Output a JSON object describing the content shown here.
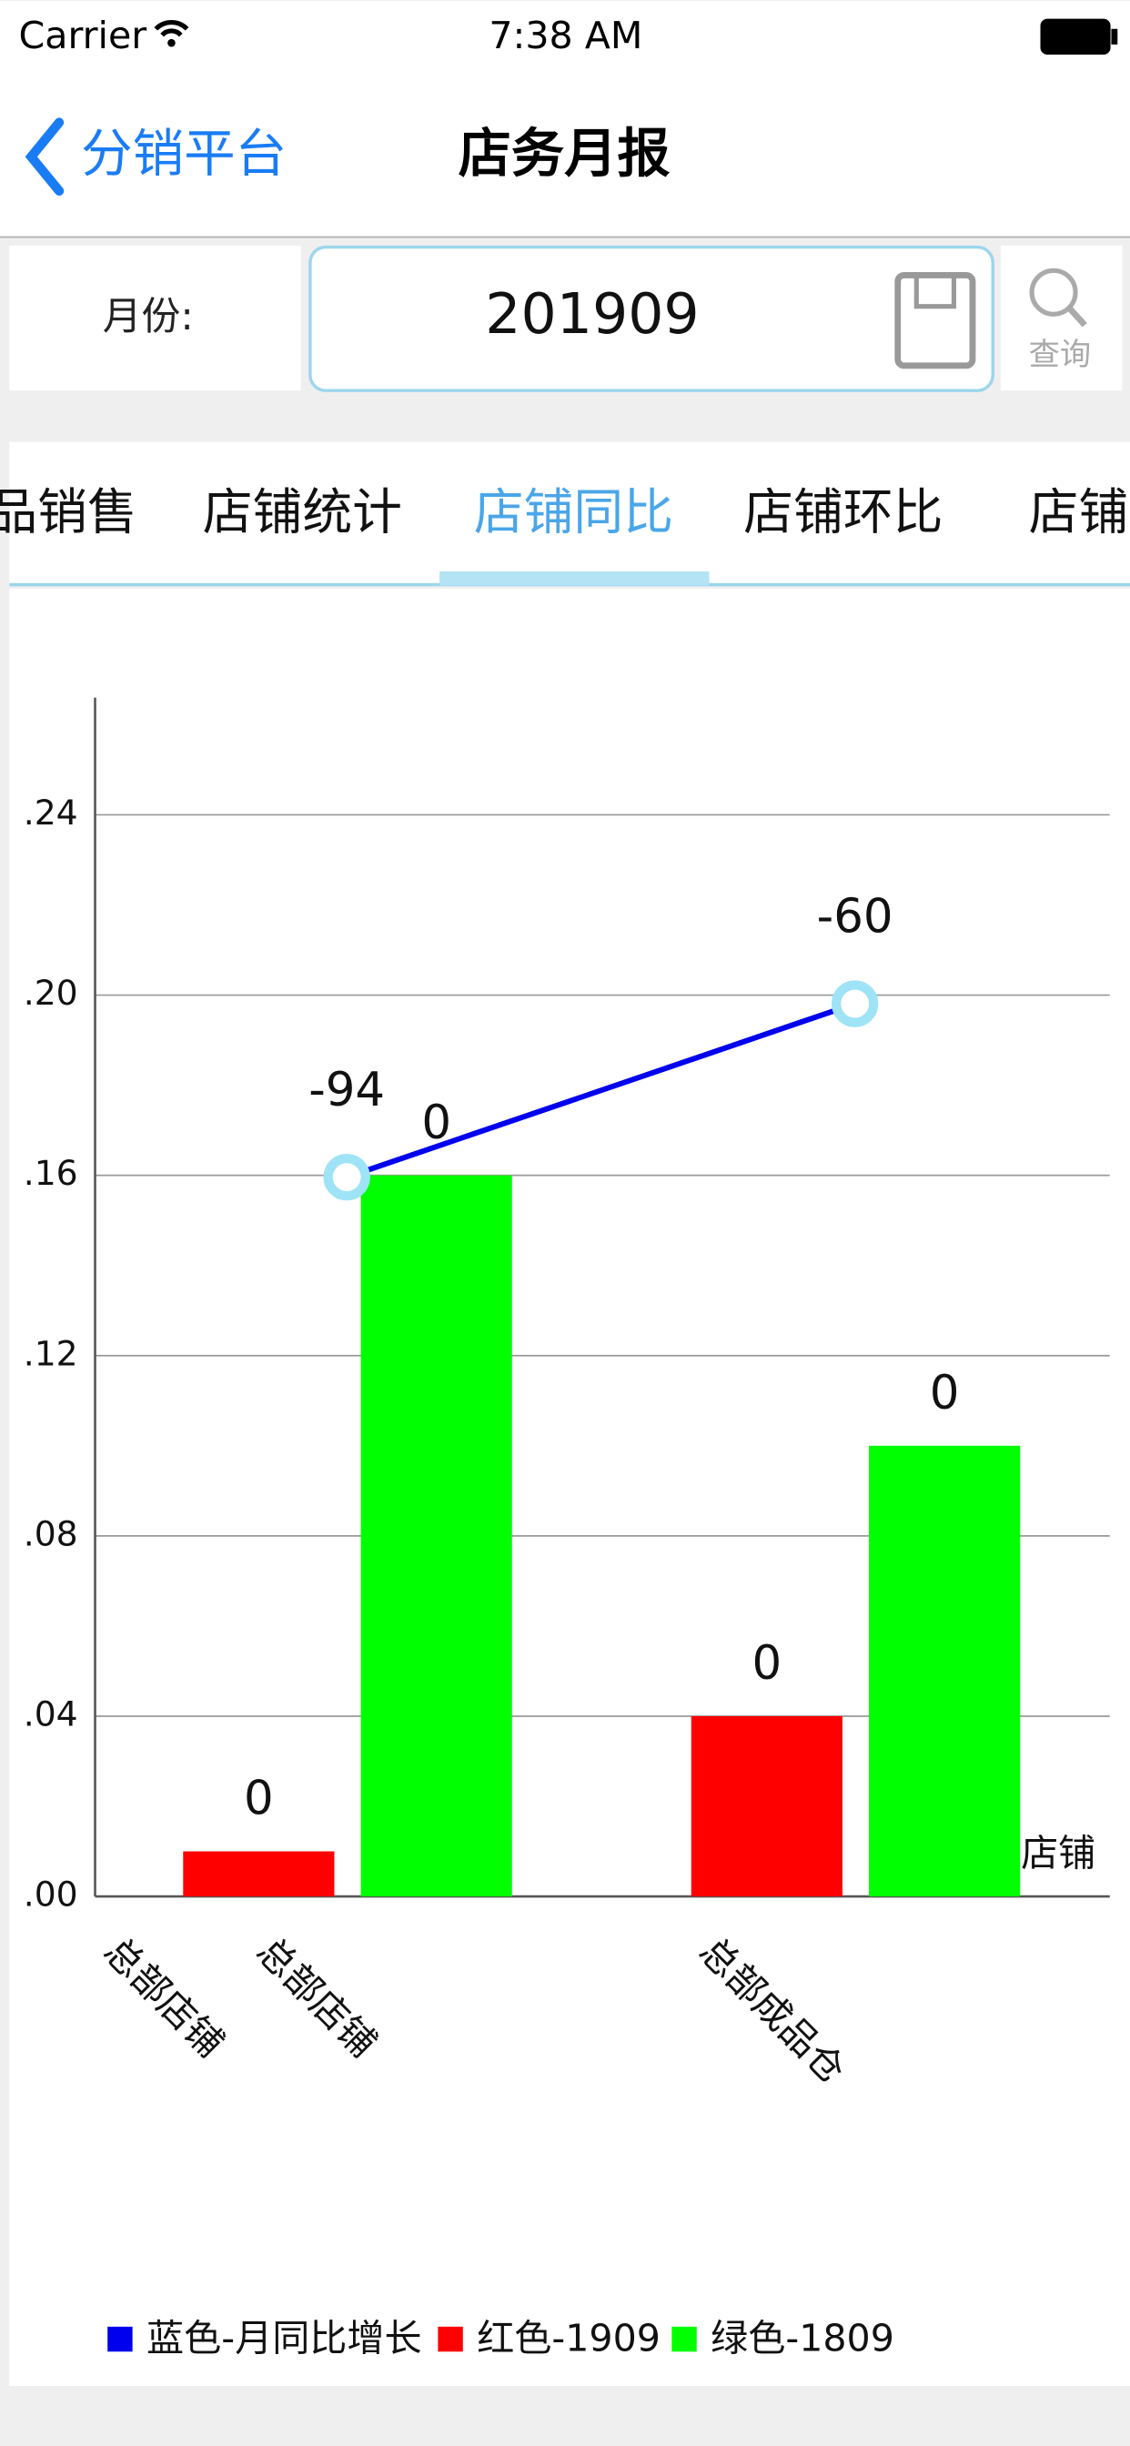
{
  "status_bar": {
    "carrier": "Carrier",
    "time": "7:38 AM"
  },
  "nav": {
    "back": "分销平台",
    "title": "店务月报"
  },
  "form": {
    "label": "月份:",
    "value": "201909",
    "button": "查询"
  },
  "tabs": [
    "品销售",
    "店铺统计",
    "店铺同比",
    "店铺环比",
    "店铺"
  ],
  "chart_data": {
    "type": "bar",
    "categories": [
      "总部店铺",
      "总部成品仓"
    ],
    "extra_category_label": "总部店铺",
    "xlabel": "店铺",
    "ylim": [
      0,
      0.266
    ],
    "yticks": [
      {
        "value": 0,
        "label": ".00"
      },
      {
        "value": 0.04,
        "label": ".04"
      },
      {
        "value": 0.08,
        "label": ".08"
      },
      {
        "value": 0.12,
        "label": ".12"
      },
      {
        "value": 0.16,
        "label": ".16"
      },
      {
        "value": 0.2,
        "label": ".20"
      },
      {
        "value": 0.24,
        "label": ".24"
      }
    ],
    "y2lim": [
      -235,
      0
    ],
    "grid": true,
    "series": [
      {
        "name": "蓝色-月同比增长",
        "color": "#0000ee",
        "type": "line",
        "axis": "y2",
        "values": [
          -94,
          -60
        ]
      },
      {
        "name": "红色-1909",
        "color": "#ff0000",
        "values": [
          0.01,
          0.04
        ],
        "value_labels": [
          "0",
          "0"
        ]
      },
      {
        "name": "绿色-1809",
        "color": "#00ff00",
        "values": [
          0.16,
          0.1
        ],
        "value_labels": [
          "0",
          "0"
        ]
      }
    ]
  }
}
